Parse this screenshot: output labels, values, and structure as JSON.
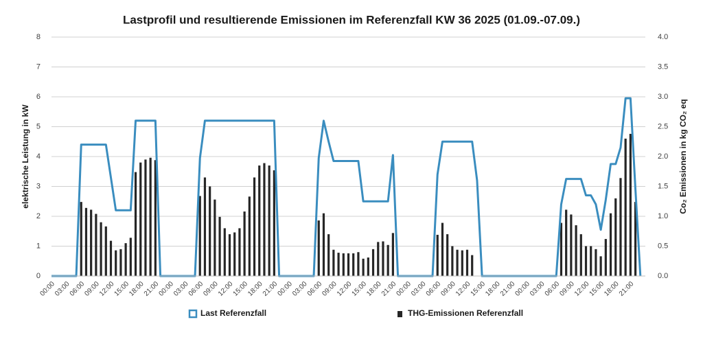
{
  "chart_data": {
    "type": "bar-line",
    "title": "Lastprofil und resultierende Emissionen im Referenzfall KW 36 2025 (01.09.-07.09.)",
    "y_label": "elektrische Leistung in kW",
    "y2_label": "Co₂ Emissionen in kg CO₂ eq",
    "categories": [
      "00:00",
      null,
      null,
      "03:00",
      null,
      null,
      "06:00",
      null,
      null,
      "09:00",
      null,
      null,
      "12:00",
      null,
      null,
      "15:00",
      null,
      null,
      "18:00",
      null,
      null,
      "21:00",
      null,
      null,
      "00:00",
      null,
      null,
      "03:00",
      null,
      null,
      "06:00",
      null,
      null,
      "09:00",
      null,
      null,
      "12:00",
      null,
      null,
      "15:00",
      null,
      null,
      "18:00",
      null,
      null,
      "21:00",
      null,
      null,
      "00:00",
      null,
      null,
      "03:00",
      null,
      null,
      "06:00",
      null,
      null,
      "09:00",
      null,
      null,
      "12:00",
      null,
      null,
      "15:00",
      null,
      null,
      "18:00",
      null,
      null,
      "21:00",
      null,
      null,
      "00:00",
      null,
      null,
      "03:00",
      null,
      null,
      "06:00",
      null,
      null,
      "09:00",
      null,
      null,
      "12:00",
      null,
      null,
      "15:00",
      null,
      null,
      "18:00",
      null,
      null,
      "21:00",
      null,
      null,
      "00:00",
      null,
      null,
      "03:00",
      null,
      null,
      "06:00",
      null,
      null,
      "09:00",
      null,
      null,
      "12:00",
      null,
      null,
      "15:00",
      null,
      null,
      "18:00",
      null,
      null,
      "21:00",
      null,
      null
    ],
    "series": [
      {
        "name": "Last Referenzfall",
        "kind": "line",
        "axis": "y",
        "color": "#3a8dbf",
        "values": [
          0,
          0,
          0,
          0,
          0,
          0,
          4.4,
          4.4,
          4.4,
          4.4,
          4.4,
          4.4,
          3.3,
          2.2,
          2.2,
          2.2,
          2.2,
          5.2,
          5.2,
          5.2,
          5.2,
          5.2,
          0,
          0,
          0,
          0,
          0,
          0,
          0,
          0,
          3.95,
          5.2,
          5.2,
          5.2,
          5.2,
          5.2,
          5.2,
          5.2,
          5.2,
          5.2,
          5.2,
          5.2,
          5.2,
          5.2,
          5.2,
          5.2,
          0,
          0,
          0,
          0,
          0,
          0,
          0,
          0,
          3.95,
          5.2,
          4.5,
          3.85,
          3.85,
          3.85,
          3.85,
          3.85,
          3.85,
          2.5,
          2.5,
          2.5,
          2.5,
          2.5,
          2.5,
          4.05,
          0,
          0,
          0,
          0,
          0,
          0,
          0,
          0,
          3.4,
          4.5,
          4.5,
          4.5,
          4.5,
          4.5,
          4.5,
          4.5,
          3.2,
          0,
          0,
          0,
          0,
          0,
          0,
          0,
          0,
          0,
          0,
          0,
          0,
          0,
          0,
          0,
          0,
          2.4,
          3.25,
          3.25,
          3.25,
          3.25,
          2.7,
          2.7,
          2.4,
          1.55,
          2.55,
          3.75,
          3.75,
          4.3,
          5.95,
          5.95,
          2.9,
          0
        ]
      },
      {
        "name": "THG-Emissionen Referenzfall",
        "kind": "bar",
        "axis": "y2",
        "color": "#262626",
        "values": [
          null,
          null,
          null,
          null,
          null,
          null,
          1.24,
          1.14,
          1.11,
          1.04,
          0.9,
          0.83,
          0.59,
          0.43,
          0.45,
          0.55,
          0.64,
          1.74,
          1.9,
          1.95,
          1.98,
          1.94,
          null,
          null,
          null,
          null,
          null,
          null,
          null,
          null,
          1.34,
          1.65,
          1.5,
          1.28,
          0.99,
          0.8,
          0.7,
          0.73,
          0.8,
          1.08,
          1.33,
          1.65,
          1.85,
          1.89,
          1.85,
          1.77,
          null,
          null,
          null,
          null,
          null,
          null,
          null,
          null,
          0.93,
          1.05,
          0.7,
          0.44,
          0.39,
          0.38,
          0.38,
          0.38,
          0.4,
          0.29,
          0.31,
          0.45,
          0.57,
          0.58,
          0.52,
          0.72,
          null,
          null,
          null,
          null,
          null,
          null,
          null,
          null,
          0.69,
          0.89,
          0.7,
          0.5,
          0.44,
          0.43,
          0.44,
          0.35,
          null,
          null,
          null,
          null,
          null,
          null,
          null,
          null,
          null,
          null,
          null,
          null,
          null,
          null,
          null,
          null,
          null,
          0.89,
          1.11,
          1.03,
          0.85,
          0.7,
          0.5,
          0.5,
          0.45,
          0.33,
          0.62,
          1.05,
          1.3,
          1.64,
          2.3,
          2.38,
          1.24,
          null
        ]
      }
    ],
    "ylim": [
      0,
      8
    ],
    "yticks": [
      0,
      1,
      2,
      3,
      4,
      5,
      6,
      7,
      8
    ],
    "y2lim": [
      0,
      4
    ],
    "y2ticks": [
      {
        "value": 0,
        "label": "0.0"
      },
      {
        "value": 0.5,
        "label": "0.5"
      },
      {
        "value": 1,
        "label": "1.0"
      },
      {
        "value": 1.5,
        "label": "1.5"
      },
      {
        "value": 2,
        "label": "2.0"
      },
      {
        "value": 2.5,
        "label": "2.5"
      },
      {
        "value": 3,
        "label": "3.0"
      },
      {
        "value": 3.5,
        "label": "3.5"
      },
      {
        "value": 4,
        "label": "4.0"
      }
    ],
    "grid": true,
    "legend": "bottom"
  }
}
